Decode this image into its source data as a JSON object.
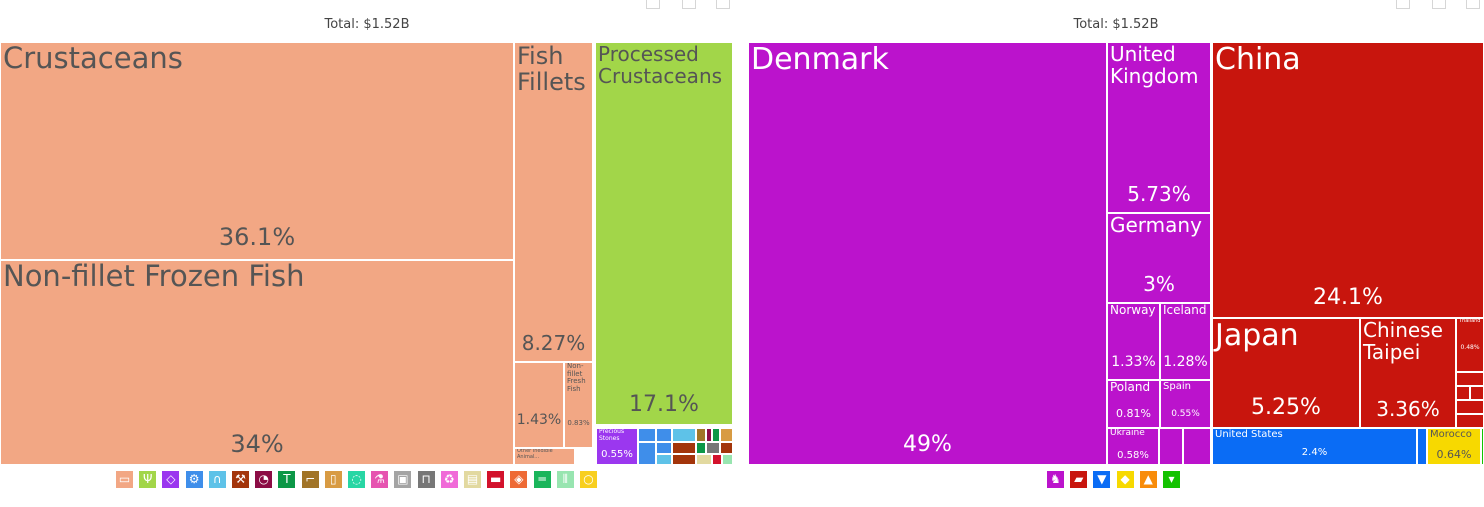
{
  "chart_data": [
    {
      "type": "treemap",
      "title": "Total: $1.52B",
      "items": [
        {
          "name": "Crustaceans",
          "share": 36.1,
          "pct": "36.1%",
          "color": "#f2a784",
          "text": "#555555"
        },
        {
          "name": "Non-fillet Frozen Fish",
          "share": 34,
          "pct": "34%",
          "color": "#f2a784",
          "text": "#555555"
        },
        {
          "name": "Fish Fillets",
          "share": 8.27,
          "pct": "8.27%",
          "color": "#f2a784",
          "text": "#555555"
        },
        {
          "name": "",
          "share": 1.43,
          "pct": "1.43%",
          "color": "#f2a784",
          "text": "#555555"
        },
        {
          "name": "Non-fillet Fresh Fish",
          "share": 0.83,
          "pct": "0.83%",
          "color": "#f2a784",
          "text": "#555555"
        },
        {
          "name": "Other Inedible Animal...",
          "share": 0.3,
          "pct": "",
          "color": "#f2a784",
          "text": "#555555"
        },
        {
          "name": "Processed Crustaceans",
          "share": 17.1,
          "pct": "17.1%",
          "color": "#a2d649",
          "text": "#555555"
        },
        {
          "name": "Precious Stones",
          "share": 0.55,
          "pct": "0.55%",
          "color": "#9b37ef",
          "text": "#ffffff"
        }
      ]
    },
    {
      "type": "treemap",
      "title": "Total: $1.52B",
      "items": [
        {
          "name": "Denmark",
          "share": 49,
          "pct": "49%",
          "color": "#bb13cc",
          "text": "#ffffff"
        },
        {
          "name": "United Kingdom",
          "share": 5.73,
          "pct": "5.73%",
          "color": "#bb13cc",
          "text": "#ffffff"
        },
        {
          "name": "Germany",
          "share": 3,
          "pct": "3%",
          "color": "#bb13cc",
          "text": "#ffffff"
        },
        {
          "name": "Norway",
          "share": 1.33,
          "pct": "1.33%",
          "color": "#bb13cc",
          "text": "#ffffff"
        },
        {
          "name": "Iceland",
          "share": 1.28,
          "pct": "1.28%",
          "color": "#bb13cc",
          "text": "#ffffff"
        },
        {
          "name": "Poland",
          "share": 0.81,
          "pct": "0.81%",
          "color": "#bb13cc",
          "text": "#ffffff"
        },
        {
          "name": "Spain",
          "share": 0.55,
          "pct": "0.55%",
          "color": "#bb13cc",
          "text": "#ffffff"
        },
        {
          "name": "Ukraine",
          "share": 0.58,
          "pct": "0.58%",
          "color": "#bb13cc",
          "text": "#ffffff"
        },
        {
          "name": "China",
          "share": 24.1,
          "pct": "24.1%",
          "color": "#c8150d",
          "text": "#ffffff"
        },
        {
          "name": "Japan",
          "share": 5.25,
          "pct": "5.25%",
          "color": "#c8150d",
          "text": "#ffffff"
        },
        {
          "name": "Chinese Taipei",
          "share": 3.36,
          "pct": "3.36%",
          "color": "#c8150d",
          "text": "#ffffff"
        },
        {
          "name": "Thailand",
          "share": 0.48,
          "pct": "0.48%",
          "color": "#c8150d",
          "text": "#ffffff"
        },
        {
          "name": "United States",
          "share": 2.4,
          "pct": "2.4%",
          "color": "#0a6cf5",
          "text": "#ffffff"
        },
        {
          "name": "Morocco",
          "share": 0.64,
          "pct": "0.64%",
          "color": "#f7d900",
          "text": "#555555"
        }
      ]
    }
  ],
  "legend_left": [
    {
      "icon": "animal-hide-icon",
      "color": "#f2a784"
    },
    {
      "icon": "vegetable-icon",
      "color": "#a2d649"
    },
    {
      "icon": "precious-stone-icon",
      "color": "#9b37ef"
    },
    {
      "icon": "machine-icon",
      "color": "#3f8eea"
    },
    {
      "icon": "textile-icon",
      "color": "#5ec2e8"
    },
    {
      "icon": "metal-icon",
      "color": "#a3350b"
    },
    {
      "icon": "instrument-icon",
      "color": "#8c0c45"
    },
    {
      "icon": "clothing-icon",
      "color": "#0c9747"
    },
    {
      "icon": "footwear-icon",
      "color": "#a17427"
    },
    {
      "icon": "mineral-icon",
      "color": "#d89b43"
    },
    {
      "icon": "animal-product-icon",
      "color": "#28d6a4"
    },
    {
      "icon": "chemical-icon",
      "color": "#e654b0"
    },
    {
      "icon": "paper-icon",
      "color": "#a4a4a4"
    },
    {
      "icon": "furniture-icon",
      "color": "#777777"
    },
    {
      "icon": "plastic-icon",
      "color": "#f06ad8"
    },
    {
      "icon": "stone-icon",
      "color": "#e2d9a0"
    },
    {
      "icon": "transportation-icon",
      "color": "#d3122c"
    },
    {
      "icon": "foodstuff-icon",
      "color": "#ee6a35"
    },
    {
      "icon": "weapon-icon",
      "color": "#1ab55b"
    },
    {
      "icon": "wood-icon",
      "color": "#98e5b0"
    },
    {
      "icon": "misc-icon",
      "color": "#f8cf1f"
    }
  ],
  "legend_right": [
    {
      "icon": "europe-icon",
      "color": "#bb13cc"
    },
    {
      "icon": "asia-icon",
      "color": "#c8150d"
    },
    {
      "icon": "north-america-icon",
      "color": "#0a6cf5"
    },
    {
      "icon": "africa-icon",
      "color": "#f7d900"
    },
    {
      "icon": "oceania-icon",
      "color": "#f88c0a"
    },
    {
      "icon": "south-america-icon",
      "color": "#13c200"
    }
  ]
}
